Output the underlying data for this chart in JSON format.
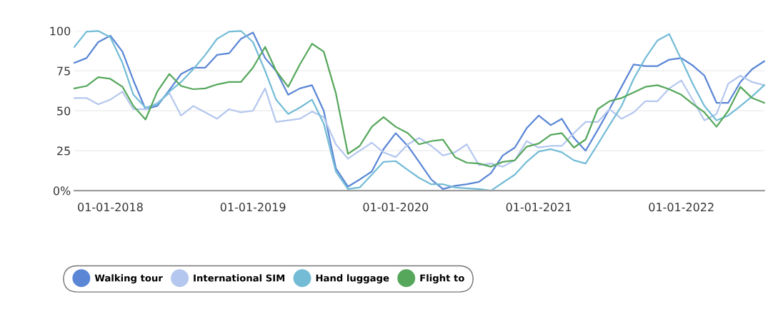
{
  "chart_data": {
    "type": "line",
    "x": [
      "2017-10",
      "2017-11",
      "2017-12",
      "2018-01",
      "2018-02",
      "2018-03",
      "2018-04",
      "2018-05",
      "2018-06",
      "2018-07",
      "2018-08",
      "2018-09",
      "2018-10",
      "2018-11",
      "2018-12",
      "2019-01",
      "2019-02",
      "2019-03",
      "2019-04",
      "2019-05",
      "2019-06",
      "2019-07",
      "2019-08",
      "2019-09",
      "2019-10",
      "2019-11",
      "2019-12",
      "2020-01",
      "2020-02",
      "2020-03",
      "2020-04",
      "2020-05",
      "2020-06",
      "2020-07",
      "2020-08",
      "2020-09",
      "2020-10",
      "2020-11",
      "2020-12",
      "2021-01",
      "2021-02",
      "2021-03",
      "2021-04",
      "2021-05",
      "2021-06",
      "2021-07",
      "2021-08",
      "2021-09",
      "2021-10",
      "2021-11",
      "2021-12",
      "2022-01",
      "2022-02",
      "2022-03",
      "2022-04",
      "2022-05",
      "2022-06",
      "2022-07",
      "2022-08"
    ],
    "series": [
      {
        "name": "Walking tour",
        "color": "#5a86d5",
        "values": [
          80,
          83,
          93,
          97,
          87,
          69,
          51,
          53,
          63,
          73,
          77,
          77,
          85,
          86,
          95,
          99,
          83,
          75,
          60,
          64,
          66,
          50,
          14,
          2.5,
          7,
          12,
          26,
          36,
          28,
          18,
          7,
          1,
          3,
          4,
          5.5,
          11,
          22,
          27,
          39,
          47,
          41,
          45,
          33,
          25,
          38,
          51,
          65,
          79,
          78,
          78,
          82,
          83,
          78,
          72,
          55,
          55,
          68,
          76,
          81
        ]
      },
      {
        "name": "International SIM",
        "color": "#b4c7ee",
        "values": [
          58,
          58,
          54,
          57,
          62,
          51,
          51,
          55,
          61,
          47,
          53,
          49,
          45,
          51,
          49,
          50,
          64,
          43,
          44,
          45,
          49.5,
          46,
          29,
          20,
          25,
          30,
          24,
          21,
          29,
          33,
          28,
          22,
          24,
          29,
          16,
          17,
          15,
          19,
          31,
          27,
          28,
          28,
          36,
          43,
          43,
          51,
          45,
          49,
          56,
          56,
          64,
          69,
          56,
          44,
          48,
          67,
          72,
          68,
          66
        ]
      },
      {
        "name": "Hand luggage",
        "color": "#74bcd6",
        "values": [
          90,
          99.5,
          100,
          96,
          80,
          60,
          52,
          54,
          62,
          68,
          76,
          85,
          95,
          99.5,
          100,
          93,
          75,
          57,
          48,
          52,
          57,
          42,
          12,
          1,
          2,
          10,
          18,
          18.5,
          13,
          8,
          4,
          4,
          2,
          1.5,
          1,
          0,
          5,
          10,
          18,
          24.5,
          26,
          24,
          19,
          17,
          29,
          41,
          53,
          70,
          83,
          94,
          98,
          82,
          66,
          53,
          44,
          47,
          53,
          59,
          66
        ]
      },
      {
        "name": "Flight to",
        "color": "#56a75c",
        "values": [
          64,
          65.5,
          71,
          70,
          65,
          53,
          44.5,
          62,
          73,
          65.5,
          63.5,
          64,
          66.5,
          68,
          68,
          77,
          90,
          75,
          65,
          79,
          92,
          87,
          61,
          23,
          28,
          40,
          46,
          40,
          36,
          29,
          31,
          32,
          21,
          17.5,
          17,
          15,
          18,
          19,
          27.5,
          29.5,
          35,
          36,
          27,
          32,
          51,
          56,
          58,
          61.5,
          65,
          66,
          63.5,
          60,
          54,
          49,
          40,
          50,
          65,
          58,
          55
        ]
      }
    ],
    "xlim": [
      "2017-10-01",
      "2022-08-01"
    ],
    "xticks": [
      {
        "value": "2018-01-01",
        "label": "01-01-2018"
      },
      {
        "value": "2019-01-01",
        "label": "01-01-2019"
      },
      {
        "value": "2020-01-01",
        "label": "01-01-2020"
      },
      {
        "value": "2021-01-01",
        "label": "01-01-2021"
      },
      {
        "value": "2022-01-01",
        "label": "01-01-2022"
      }
    ],
    "ylim": [
      0,
      100
    ],
    "yticks": [
      {
        "value": 0,
        "label": "0%"
      },
      25,
      50,
      75,
      100
    ],
    "grid": "y",
    "legend": "bottom left"
  }
}
